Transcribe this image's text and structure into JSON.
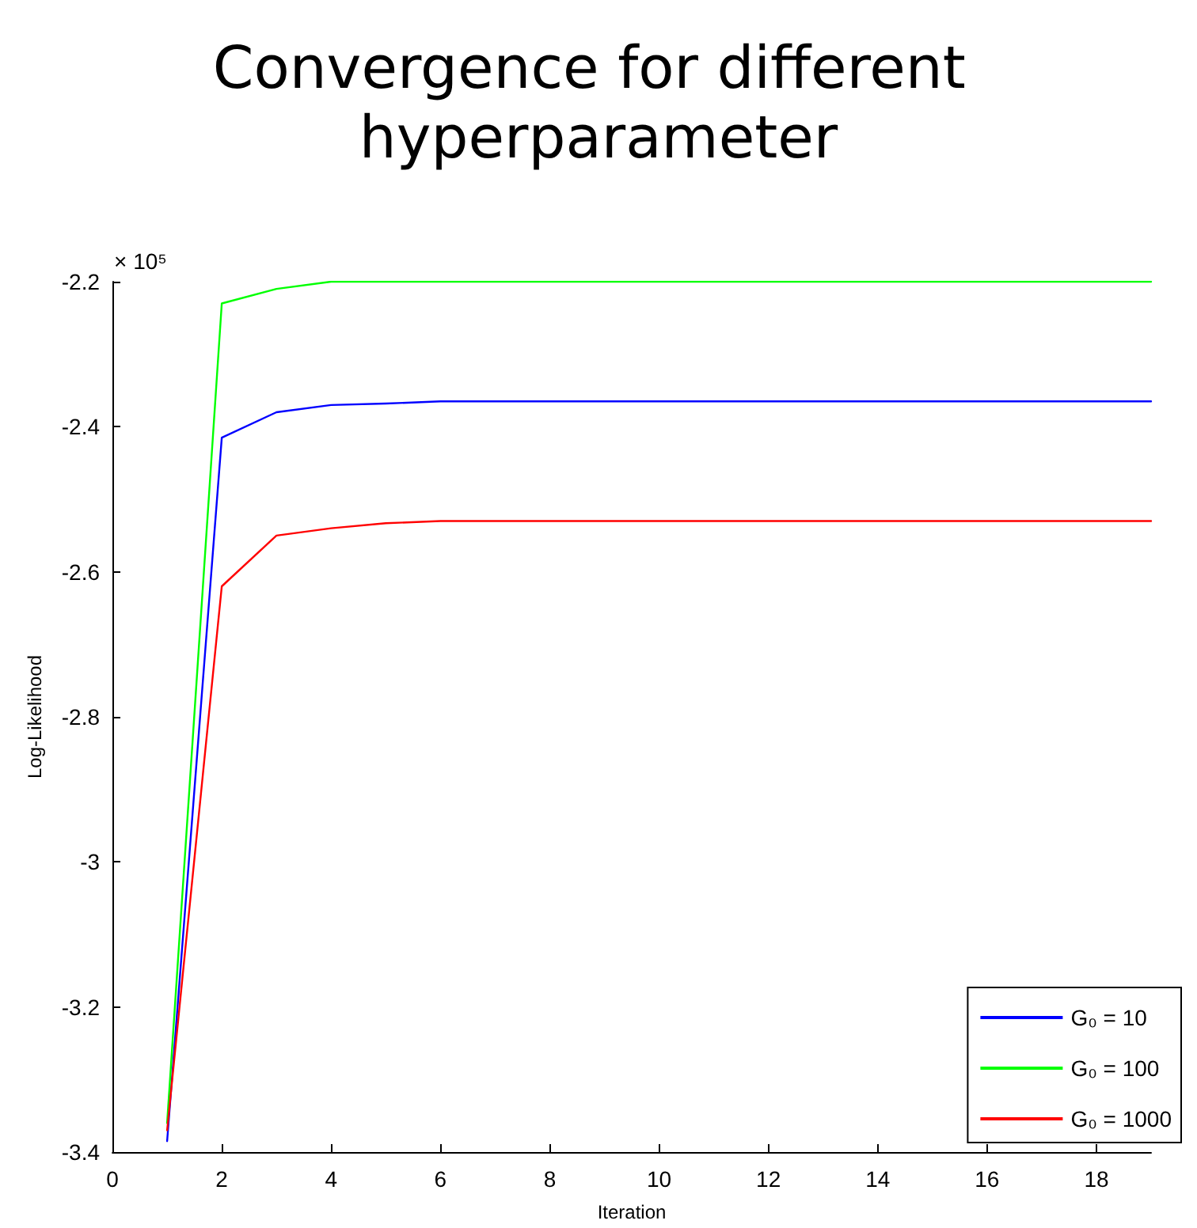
{
  "chart_data": {
    "type": "line",
    "title": "Convergence for different hyperparameter",
    "xlabel": "Iteration",
    "ylabel": "Log-Likelihood",
    "annotations": [
      "× 10⁵"
    ],
    "x": [
      1,
      2,
      3,
      4,
      5,
      6,
      19
    ],
    "series": [
      {
        "name": "G₀ = 10",
        "color": "#0000ff",
        "values": [
          -3.385,
          -2.415,
          -2.38,
          -2.37,
          -2.368,
          -2.365,
          -2.365
        ]
      },
      {
        "name": "G₀ = 100",
        "color": "#00ff00",
        "values": [
          -3.36,
          -2.23,
          -2.21,
          -2.2,
          -2.2,
          -2.2,
          -2.2
        ]
      },
      {
        "name": "G₀ = 1000",
        "color": "#ff0000",
        "values": [
          -3.37,
          -2.62,
          -2.55,
          -2.54,
          -2.533,
          -2.53,
          -2.53
        ]
      }
    ],
    "xlim": [
      0,
      19
    ],
    "xticks": [
      0,
      2,
      4,
      6,
      8,
      10,
      12,
      14,
      16,
      18
    ],
    "ylim": [
      -3.4,
      -2.2
    ],
    "yticks": [
      -3.4,
      -3.2,
      -3,
      -2.8,
      -2.6,
      -2.4,
      -2.2
    ],
    "grid": false,
    "legend": "bottom right",
    "marker": "none",
    "line_style": "solid"
  }
}
